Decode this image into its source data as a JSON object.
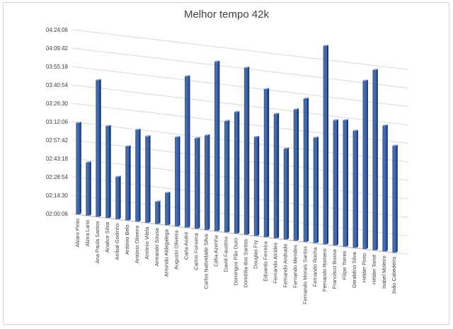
{
  "chart_data": {
    "type": "bar",
    "title": "Melhor tempo 42k",
    "xlabel": "",
    "ylabel": "",
    "y_tick_labels": [
      "02:00:06",
      "02:14:30",
      "02:28:54",
      "02:43:18",
      "02:57:42",
      "03:12:06",
      "03:26:30",
      "03:40:54",
      "03:55:18",
      "04:09:42",
      "04:24:06"
    ],
    "ylim_seconds": [
      7206,
      15846
    ],
    "categories": [
      "Álvaro Pinto",
      "Alzira Lario",
      "Ana Paula Santos",
      "Analice Silva",
      "Aníbal Godinho",
      "António Belo",
      "António Oliveira",
      "António Vilela",
      "Armando Sousa",
      "Armindo Aldegalega",
      "Augusto Oliveira",
      "Carla André",
      "Carlos Fonseca",
      "Carlos Natividade Silva",
      "Célia Azenha",
      "David Faustino",
      "Domingos Pão Duro",
      "Domitília dos Santos",
      "Douglas Fry",
      "Eduardo Ferreira",
      "Fernando Alcides",
      "Fernando Andrade",
      "Fernando Mendes",
      "Fernando Morais Santos",
      "Fernando Rocha",
      "Fernando Romero",
      "Francisco Bossa",
      "Filipe Torres",
      "Geraldino Silva",
      "Hélder Pinto",
      "Hélder Tomé",
      "Isabel Moleiro",
      "João Cabedeira"
    ],
    "values": [
      11500,
      9700,
      13620,
      11520,
      9190,
      10680,
      11510,
      11260,
      8250,
      8720,
      11390,
      14300,
      11450,
      11640,
      15150,
      12420,
      12900,
      15030,
      11840,
      14140,
      13030,
      11460,
      13350,
      13910,
      12140,
      16490,
      13060,
      13120,
      12680,
      15080,
      15640,
      13090,
      12200
    ],
    "grid": true,
    "legend": "none",
    "bar_color": "#4472c4"
  }
}
